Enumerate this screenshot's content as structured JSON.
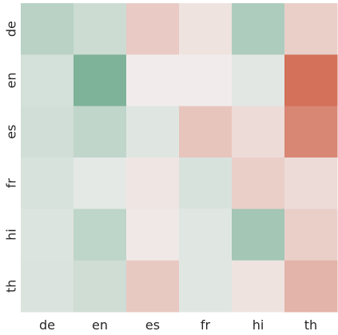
{
  "chart_data": {
    "type": "heatmap",
    "title": "",
    "xlabel": "",
    "ylabel": "",
    "x_categories": [
      "de",
      "en",
      "es",
      "fr",
      "hi",
      "th"
    ],
    "y_categories": [
      "de",
      "en",
      "es",
      "fr",
      "hi",
      "th"
    ],
    "colormap": {
      "negative": "#6aa88a",
      "neutral": "#f2f0f0",
      "positive": "#d16a52"
    },
    "value_range": [
      -1,
      1
    ],
    "values": [
      [
        -0.42,
        -0.28,
        0.28,
        0.1,
        -0.5,
        0.25
      ],
      [
        -0.22,
        -0.85,
        0.03,
        0.03,
        -0.12,
        0.95
      ],
      [
        -0.25,
        -0.36,
        -0.14,
        0.32,
        0.16,
        0.78
      ],
      [
        -0.2,
        -0.1,
        0.08,
        -0.19,
        0.25,
        0.16
      ],
      [
        -0.16,
        -0.38,
        0.06,
        -0.13,
        -0.58,
        0.25
      ],
      [
        -0.18,
        -0.26,
        0.29,
        -0.13,
        0.1,
        0.45
      ]
    ]
  }
}
